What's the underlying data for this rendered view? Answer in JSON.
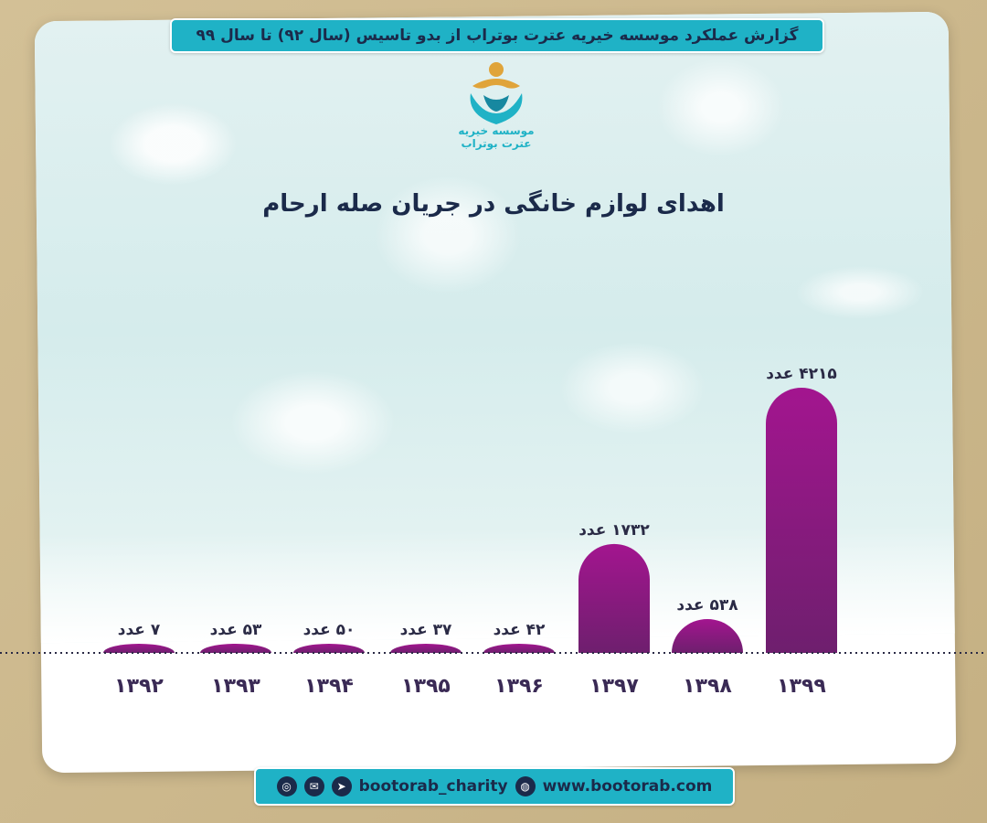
{
  "header": {
    "title": "گزارش عملکرد موسسه خیریه عترت بوتراب از بدو تاسیس (سال ۹۲) تا سال ۹۹"
  },
  "logo": {
    "text": "موسسه خیریه عترت بوتراب"
  },
  "chart_data": {
    "type": "bar",
    "title": "اهدای لوازم خانگی در جریان صله ارحام",
    "categories": [
      "۱۳۹۲",
      "۱۳۹۳",
      "۱۳۹۴",
      "۱۳۹۵",
      "۱۳۹۶",
      "۱۳۹۷",
      "۱۳۹۸",
      "۱۳۹۹"
    ],
    "values": [
      7,
      53,
      50,
      37,
      42,
      1732,
      538,
      4215
    ],
    "value_labels": [
      "۷ عدد",
      "۵۳ عدد",
      "۵۰ عدد",
      "۳۷ عدد",
      "۴۲ عدد",
      "۱۷۳۲ عدد",
      "۵۳۸ عدد",
      "۴۲۱۵ عدد"
    ],
    "bar_color": "#a3158f",
    "bar_color_dark": "#6e1f6e",
    "baseline": "dotted"
  },
  "footer": {
    "handle": "bootorab_charity",
    "website": "www.bootorab.com",
    "icons": [
      "instagram-icon",
      "eitaa-icon",
      "telegram-icon",
      "globe-icon"
    ]
  },
  "colors": {
    "accent": "#1fb2c6",
    "text": "#1b2a4a",
    "background": "#cdb98d"
  }
}
